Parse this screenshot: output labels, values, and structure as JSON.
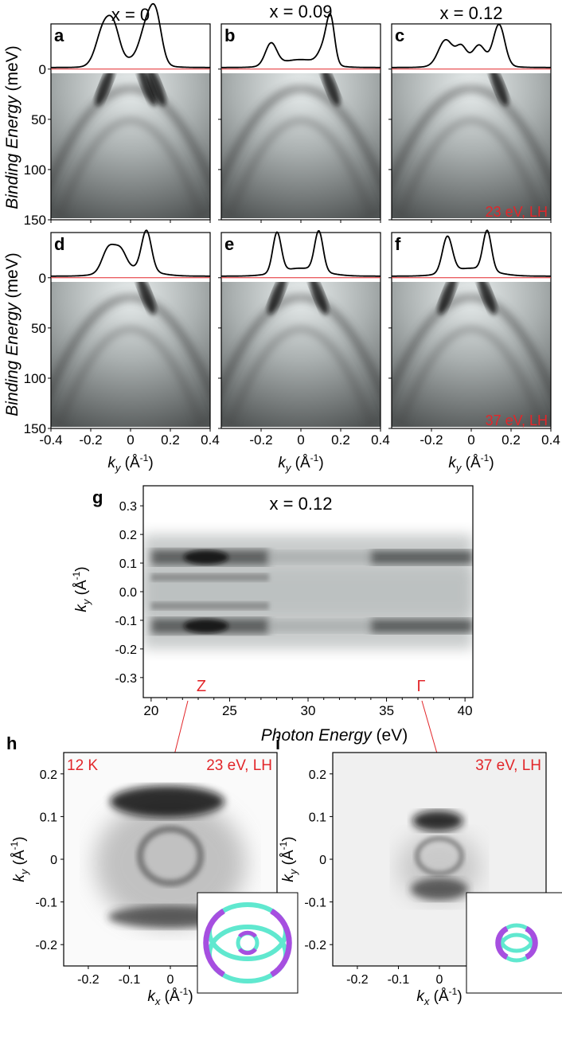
{
  "figure": {
    "column_titles": [
      "x = 0",
      "x = 0.09",
      "x = 0.12"
    ],
    "colors": {
      "annotation": "#e2262a",
      "fermi_line": "#e2262a",
      "curve": "#000000",
      "magenta": "#a64fe0",
      "cyan": "#60e8cf"
    }
  },
  "chart_data": [
    {
      "type": "heatmap",
      "panels": [
        {
          "label": "a",
          "row": 0,
          "col": 0,
          "mdc_peaks": [
            [
              -0.13,
              0.055,
              1.0
            ],
            [
              -0.08,
              0.04,
              0.55
            ],
            [
              0.085,
              0.05,
              0.95
            ],
            [
              0.13,
              0.04,
              0.95
            ]
          ]
        },
        {
          "label": "b",
          "row": 0,
          "col": 1,
          "mdc_peaks": [
            [
              -0.15,
              0.04,
              0.55
            ],
            [
              0.12,
              0.04,
              0.45
            ],
            [
              0.15,
              0.028,
              1.0
            ]
          ]
        },
        {
          "label": "c",
          "row": 0,
          "col": 2,
          "mdc_peaks": [
            [
              -0.13,
              0.05,
              0.6
            ],
            [
              -0.05,
              0.035,
              0.35
            ],
            [
              0.04,
              0.04,
              0.38
            ],
            [
              0.14,
              0.04,
              1.0
            ]
          ]
        },
        {
          "label": "d",
          "row": 1,
          "col": 0,
          "mdc_peaks": [
            [
              -0.11,
              0.045,
              0.6
            ],
            [
              -0.05,
              0.04,
              0.45
            ],
            [
              0.08,
              0.035,
              1.0
            ]
          ]
        },
        {
          "label": "e",
          "row": 1,
          "col": 1,
          "mdc_peaks": [
            [
              -0.12,
              0.03,
              1.0
            ],
            [
              0.09,
              0.03,
              1.0
            ]
          ]
        },
        {
          "label": "f",
          "row": 1,
          "col": 2,
          "mdc_peaks": [
            [
              -0.12,
              0.035,
              0.9
            ],
            [
              0.08,
              0.03,
              1.0
            ]
          ]
        }
      ],
      "annotations": [
        "23 eV, LH",
        "37 eV, LH"
      ],
      "ylabel": "Binding Energy",
      "ylabel_unit": " (meV)",
      "yticks": [
        "0",
        "50",
        "100",
        "150"
      ],
      "ylim": [
        150,
        -45
      ],
      "xlabel": "k",
      "xlabel_sub": "y",
      "xlabel_unit": " (Å",
      "xlabel_sup": "-1",
      "xlabel_close": ")",
      "xticks_col0": [
        "-0.4",
        "-0.2",
        "0",
        "0.2",
        "0.4"
      ],
      "xticks_col1": [
        "-0.2",
        "0",
        "0.2",
        "0.4"
      ],
      "xticks_col2": [
        "-0.2",
        "0",
        "0.2",
        "0.4"
      ],
      "xlim": [
        -0.4,
        0.4
      ]
    },
    {
      "type": "heatmap",
      "label": "g",
      "title": "x = 0.12",
      "xlabel": "Photon Energy",
      "xlabel_unit": " (eV)",
      "xticks": [
        "20",
        "25",
        "30",
        "35",
        "40"
      ],
      "xlim": [
        19.5,
        40.5
      ],
      "ylabel": "k",
      "ylabel_sub": "y",
      "ylabel_unit": " (Å",
      "ylabel_sup": "-1",
      "ylabel_close": ")",
      "yticks": [
        "0.3",
        "0.2",
        "0.1",
        "0.0",
        "-0.1",
        "-0.2",
        "-0.3"
      ],
      "ylim": [
        -0.37,
        0.37
      ],
      "band_ky": [
        0.12,
        -0.12
      ],
      "markers": [
        {
          "text": "Z",
          "hv": 23
        },
        {
          "text": "Γ",
          "hv": 37
        }
      ]
    },
    {
      "type": "heatmap",
      "label": "h",
      "annotations": [
        "12 K",
        "23 eV, LH"
      ],
      "xlabel": "k",
      "xlabel_sub": "x",
      "xlabel_unit": " (Å",
      "xlabel_sup": "-1",
      "xlabel_close": ")",
      "ylabel": "k",
      "ylabel_sub": "y",
      "ylabel_unit": " (Å",
      "ylabel_sup": "-1",
      "ylabel_close": ")",
      "xticks": [
        "-0.2",
        "-0.1",
        "0"
      ],
      "yticks": [
        "0.2",
        "0.1",
        "0",
        "-0.1",
        "-0.2"
      ],
      "xlim": [
        -0.26,
        0.26
      ],
      "ylim": [
        -0.25,
        0.25
      ]
    },
    {
      "type": "heatmap",
      "label": "i",
      "annotations": [
        "37 eV, LH"
      ],
      "xlabel": "k",
      "xlabel_sub": "x",
      "xlabel_unit": " (Å",
      "xlabel_sup": "-1",
      "xlabel_close": ")",
      "ylabel": "k",
      "ylabel_sub": "y",
      "ylabel_unit": " (Å",
      "ylabel_sup": "-1",
      "ylabel_close": ")",
      "xticks": [
        "-0.2",
        "-0.1",
        "0"
      ],
      "yticks": [
        "0.2",
        "0.1",
        "0",
        "-0.1",
        "-0.2"
      ],
      "xlim": [
        -0.26,
        0.26
      ],
      "ylim": [
        -0.25,
        0.25
      ]
    }
  ]
}
